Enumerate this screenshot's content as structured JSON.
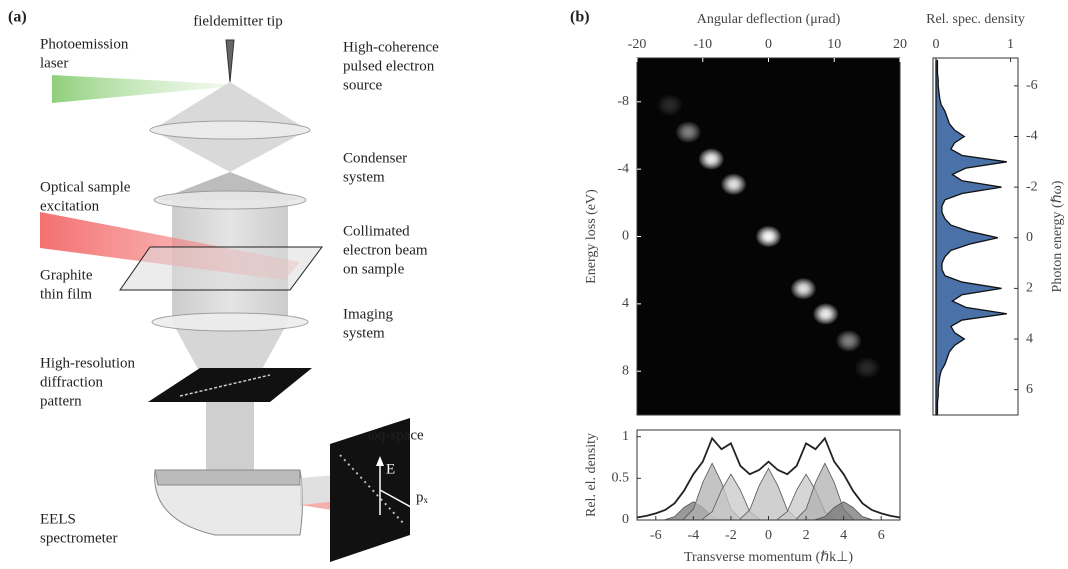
{
  "panel_a": {
    "label": "(a)",
    "tip": "fieldemitter tip",
    "laser": [
      "Photoemission",
      "laser"
    ],
    "source": [
      "High-coherence",
      "pulsed electron",
      "source"
    ],
    "condenser": [
      "Condenser",
      "system"
    ],
    "excitation": [
      "Optical sample",
      "excitation"
    ],
    "collimated": [
      "Collimated",
      "electron beam",
      "on sample"
    ],
    "film": [
      "Graphite",
      "thin film"
    ],
    "imaging": [
      "Imaging",
      "system"
    ],
    "diffraction": [
      "High-resolution",
      "diffraction",
      "pattern"
    ],
    "space": "ωq-space",
    "energy_axis": "E",
    "momentum_axis": "pₓ",
    "spectrometer": [
      "EELS",
      "spectrometer"
    ]
  },
  "panel_b": {
    "label": "(b)"
  },
  "chart_data": [
    {
      "type": "heatmap",
      "xlabel": "Angular deflection (μrad)",
      "ylabel": "Energy loss (eV)",
      "xlim": [
        -20,
        20
      ],
      "xticks": [
        -20,
        -10,
        0,
        10,
        20
      ],
      "ylim": [
        10.6,
        -10.6
      ],
      "yticks": [
        -8,
        -4,
        0,
        4,
        8
      ],
      "x": [
        -15,
        -12.2,
        -8.7,
        -5.3,
        0,
        5.3,
        8.7,
        12.2,
        15
      ],
      "y": [
        -7.8,
        -6.2,
        -4.6,
        -3.1,
        0,
        3.1,
        4.6,
        6.2,
        7.8
      ],
      "values": [
        0.15,
        0.5,
        0.95,
        0.9,
        1,
        0.9,
        0.95,
        0.5,
        0.15
      ]
    },
    {
      "type": "line",
      "orientation": "vertical",
      "xlabel": "Rel. spec. density",
      "ylabel": "Photon energy (ℏω)",
      "xlim": [
        -0.04,
        1.1
      ],
      "xticks": [
        0,
        1
      ],
      "ylim": [
        7.0,
        -7.1
      ],
      "yticks": [
        -6,
        -4,
        -2,
        0,
        2,
        4,
        6
      ],
      "color": "#4a72a8",
      "y": [
        -7,
        -6.75,
        -6.5,
        -6.25,
        -6,
        -5.75,
        -5.5,
        -5.25,
        -5,
        -4.75,
        -4.5,
        -4.25,
        -4,
        -3.75,
        -3.5,
        -3.25,
        -3,
        -2.75,
        -2.5,
        -2.25,
        -2,
        -1.75,
        -1.5,
        -1.25,
        -1,
        -0.75,
        -0.5,
        -0.25,
        0,
        0.25,
        0.5,
        0.75,
        1,
        1.25,
        1.5,
        1.75,
        2,
        2.25,
        2.5,
        2.75,
        3,
        3.25,
        3.5,
        3.75,
        4,
        4.25,
        4.5,
        4.75,
        5,
        5.25,
        5.5,
        5.75,
        6,
        6.25,
        6.5,
        6.75,
        7
      ],
      "values": [
        0.02,
        0.02,
        0.02,
        0.03,
        0.03,
        0.04,
        0.05,
        0.07,
        0.12,
        0.15,
        0.18,
        0.25,
        0.38,
        0.25,
        0.2,
        0.35,
        0.95,
        0.4,
        0.22,
        0.35,
        0.88,
        0.35,
        0.12,
        0.08,
        0.08,
        0.12,
        0.2,
        0.45,
        0.83,
        0.45,
        0.2,
        0.12,
        0.08,
        0.08,
        0.12,
        0.35,
        0.88,
        0.35,
        0.22,
        0.4,
        0.95,
        0.35,
        0.2,
        0.25,
        0.38,
        0.25,
        0.18,
        0.15,
        0.12,
        0.07,
        0.05,
        0.04,
        0.03,
        0.03,
        0.02,
        0.02,
        0.02
      ]
    },
    {
      "type": "area",
      "xlabel": "Transverse momentum (ℏk⊥)",
      "ylabel": "Rel. el. density",
      "xlim": [
        -7,
        7
      ],
      "xticks": [
        -6,
        -4,
        -2,
        0,
        2,
        4,
        6
      ],
      "ylim": [
        0,
        1.08
      ],
      "yticks": [
        0,
        0.5,
        1
      ],
      "series": [
        {
          "color": "#777777",
          "fill": true,
          "x": [
            -5.5,
            -5,
            -4.5,
            -4,
            -3.5,
            -3,
            -2.5
          ],
          "values": [
            0.005,
            0.04,
            0.15,
            0.22,
            0.15,
            0.04,
            0.005
          ]
        },
        {
          "color": "#b0b0b0",
          "fill": true,
          "x": [
            -4.5,
            -4,
            -3.5,
            -3,
            -2.5,
            -2,
            -1.5
          ],
          "values": [
            0.016,
            0.13,
            0.45,
            0.68,
            0.45,
            0.13,
            0.016
          ]
        },
        {
          "color": "#c8c8c8",
          "fill": true,
          "x": [
            -3.5,
            -3,
            -2.5,
            -2,
            -1.5,
            -1,
            -0.5
          ],
          "values": [
            0.013,
            0.1,
            0.36,
            0.55,
            0.36,
            0.1,
            0.013
          ]
        },
        {
          "color": "#c0c0c0",
          "fill": true,
          "x": [
            -1.5,
            -1,
            -0.5,
            0,
            0.5,
            1,
            1.5
          ],
          "values": [
            0.015,
            0.12,
            0.41,
            0.62,
            0.41,
            0.12,
            0.015
          ]
        },
        {
          "color": "#c8c8c8",
          "fill": true,
          "x": [
            0.5,
            1,
            1.5,
            2,
            2.5,
            3,
            3.5
          ],
          "values": [
            0.013,
            0.1,
            0.36,
            0.55,
            0.36,
            0.1,
            0.013
          ]
        },
        {
          "color": "#b0b0b0",
          "fill": true,
          "x": [
            1.5,
            2,
            2.5,
            3,
            3.5,
            4,
            4.5
          ],
          "values": [
            0.016,
            0.13,
            0.45,
            0.68,
            0.45,
            0.13,
            0.016
          ]
        },
        {
          "color": "#777777",
          "fill": true,
          "x": [
            2.5,
            3,
            3.5,
            4,
            4.5,
            5,
            5.5
          ],
          "values": [
            0.005,
            0.04,
            0.15,
            0.22,
            0.15,
            0.04,
            0.005
          ]
        },
        {
          "color": "#222222",
          "fill": false,
          "x": [
            -7,
            -6.5,
            -6,
            -5.5,
            -5,
            -4.5,
            -4,
            -3.5,
            -3,
            -2.5,
            -2,
            -1.5,
            -1,
            -0.5,
            0,
            0.5,
            1,
            1.5,
            2,
            2.5,
            3,
            3.5,
            4,
            4.5,
            5,
            5.5,
            6,
            6.5,
            7
          ],
          "values": [
            0.03,
            0.05,
            0.08,
            0.12,
            0.2,
            0.35,
            0.55,
            0.7,
            0.98,
            0.85,
            0.92,
            0.65,
            0.55,
            0.6,
            0.7,
            0.6,
            0.55,
            0.65,
            0.92,
            0.85,
            0.98,
            0.7,
            0.55,
            0.35,
            0.2,
            0.12,
            0.08,
            0.05,
            0.03
          ]
        }
      ]
    }
  ]
}
